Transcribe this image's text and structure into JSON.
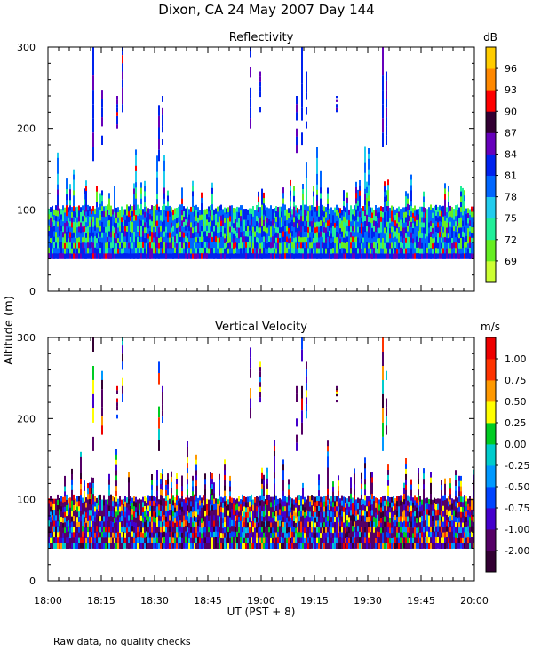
{
  "title": "Dixon, CA 24 May 2007  Day 144",
  "ylabel": "Altitude (m)",
  "xlabel": "UT  (PST + 8)",
  "footer": "Raw data, no quality checks",
  "x_ticks": [
    "18:00",
    "18:15",
    "18:30",
    "18:45",
    "19:00",
    "19:15",
    "19:30",
    "19:45",
    "20:00"
  ],
  "chart_data": [
    {
      "type": "heatmap",
      "title": "Reflectivity",
      "xlabel": "UT  (PST + 8)",
      "ylabel": "Altitude (m)",
      "x_range_min": [
        1080,
        1200
      ],
      "ylim": [
        0,
        300
      ],
      "yticks": [
        0,
        100,
        200,
        300
      ],
      "colorbar_label": "dB",
      "colorbar_ticks": [
        "69",
        "72",
        "75",
        "78",
        "81",
        "84",
        "87",
        "90",
        "93",
        "96"
      ],
      "colorbar_colors": [
        "#ccff33",
        "#66ee22",
        "#22ee99",
        "#22ccee",
        "#0066ff",
        "#0022ee",
        "#6600bb",
        "#330033",
        "#ff0000",
        "#ff8800",
        "#ffcc00"
      ],
      "base_altitude_m": 40,
      "echo_layer_top_m": 100,
      "plume_top_m": 300
    },
    {
      "type": "heatmap",
      "title": "Vertical Velocity",
      "xlabel": "UT  (PST + 8)",
      "ylabel": "Altitude (m)",
      "x_range_min": [
        1080,
        1200
      ],
      "ylim": [
        0,
        300
      ],
      "yticks": [
        0,
        100,
        200,
        300
      ],
      "colorbar_label": "m/s",
      "colorbar_ticks": [
        "-2.00",
        "-1.00",
        "-0.75",
        "-0.50",
        "-0.25",
        "0.00",
        "0.25",
        "0.50",
        "0.75",
        "1.00"
      ],
      "colorbar_colors": [
        "#330033",
        "#550066",
        "#4400cc",
        "#0044ff",
        "#0099ff",
        "#00cccc",
        "#00cc22",
        "#ffff00",
        "#ff9900",
        "#ff3300",
        "#ee0000"
      ],
      "base_altitude_m": 40,
      "echo_layer_top_m": 100,
      "plume_top_m": 300
    }
  ]
}
